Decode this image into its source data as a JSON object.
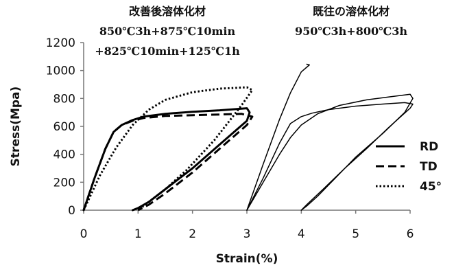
{
  "chart_data": {
    "type": "line",
    "xlabel": "Strain(%)",
    "ylabel": "Stress(Mpa)",
    "xlim": [
      0,
      6
    ],
    "ylim": [
      0,
      1200
    ],
    "xticks": [
      0,
      1,
      2,
      3,
      4,
      5,
      6
    ],
    "yticks": [
      0,
      200,
      400,
      600,
      800,
      1000,
      1200
    ],
    "grid": false,
    "legend_position": "right",
    "annotations": [
      {
        "id": "improved",
        "lines": [
          "改善後溶体化材",
          "850℃3h+875℃10min",
          "+825℃10min+125℃1h"
        ]
      },
      {
        "id": "conventional",
        "lines": [
          "既往の溶体化材",
          "950℃3h+800℃3h"
        ]
      }
    ],
    "series": [
      {
        "name": "RD",
        "style": "solid",
        "width": 3,
        "x": [
          0,
          0.2,
          0.4,
          0.55,
          0.7,
          0.9,
          1.1,
          1.5,
          2.0,
          2.5,
          3.0,
          3.05,
          3.0,
          2.5,
          2.0,
          1.5,
          1.2,
          1.0,
          0.9
        ],
        "y": [
          0,
          230,
          440,
          560,
          610,
          645,
          670,
          690,
          705,
          715,
          730,
          700,
          640,
          470,
          300,
          150,
          60,
          15,
          0
        ]
      },
      {
        "name": "TD",
        "style": "dashed",
        "width": 3,
        "x": [
          0,
          0.2,
          0.4,
          0.55,
          0.7,
          0.9,
          1.1,
          1.5,
          2.0,
          2.5,
          2.9,
          3.1,
          3.0,
          2.5,
          2.0,
          1.5,
          1.2,
          1.0
        ],
        "y": [
          0,
          230,
          440,
          560,
          610,
          640,
          660,
          675,
          680,
          685,
          690,
          670,
          610,
          440,
          270,
          120,
          40,
          0
        ]
      },
      {
        "name": "45°",
        "style": "dotted",
        "width": 3,
        "x": [
          0,
          0.3,
          0.6,
          0.9,
          1.2,
          1.5,
          2.0,
          2.5,
          3.0,
          3.1,
          2.9,
          2.4,
          1.9,
          1.5,
          1.2,
          1.0
        ],
        "y": [
          0,
          250,
          450,
          610,
          720,
          790,
          845,
          870,
          880,
          860,
          750,
          500,
          290,
          150,
          60,
          0
        ]
      },
      {
        "name": "",
        "style": "thin",
        "width": 1.5,
        "x": [
          3.0,
          3.3,
          3.6,
          3.8,
          4.0,
          4.15,
          4.1
        ],
        "y": [
          0,
          330,
          650,
          840,
          990,
          1040,
          1045
        ]
      },
      {
        "name": "",
        "style": "thin",
        "width": 1.5,
        "x": [
          3.0,
          3.3,
          3.6,
          3.8,
          4.0,
          4.2,
          4.5,
          5.0,
          5.5,
          5.9,
          6.05,
          6.0,
          5.6,
          5.2,
          4.8,
          4.4,
          4.1,
          4.0
        ],
        "y": [
          0,
          230,
          480,
          620,
          670,
          695,
          720,
          745,
          760,
          770,
          760,
          730,
          590,
          440,
          300,
          150,
          40,
          0
        ]
      },
      {
        "name": "",
        "style": "thin",
        "width": 1.5,
        "x": [
          3.0,
          3.3,
          3.6,
          3.8,
          4.0,
          4.3,
          4.7,
          5.2,
          5.6,
          6.0,
          6.05,
          5.9,
          5.5,
          5.0,
          4.6,
          4.3,
          4.1,
          4.0
        ],
        "y": [
          0,
          200,
          400,
          520,
          610,
          690,
          750,
          790,
          810,
          830,
          800,
          700,
          550,
          380,
          220,
          100,
          30,
          0
        ]
      }
    ]
  }
}
